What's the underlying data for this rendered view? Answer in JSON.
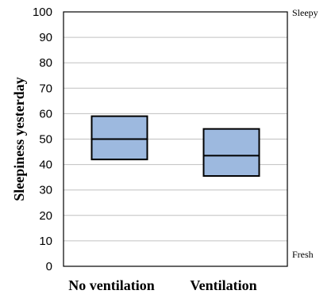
{
  "chart_data": {
    "type": "box",
    "ylabel": "Sleepiness yesterday",
    "ylim": [
      0,
      100
    ],
    "yticks": [
      "0",
      "10",
      "20",
      "30",
      "40",
      "50",
      "60",
      "70",
      "80",
      "90",
      "100"
    ],
    "grid": true,
    "categories": [
      "No ventilation",
      "Ventilation"
    ],
    "boxes": [
      {
        "q1": 42,
        "median": 50,
        "q3": 59
      },
      {
        "q1": 35.5,
        "median": 43.5,
        "q3": 54
      }
    ],
    "right_labels": {
      "top": "Sleepy",
      "bottom": "Fresh"
    },
    "box_fill": "#9db9df",
    "box_stroke": "#000000",
    "grid_color": "#c0c0c0"
  }
}
